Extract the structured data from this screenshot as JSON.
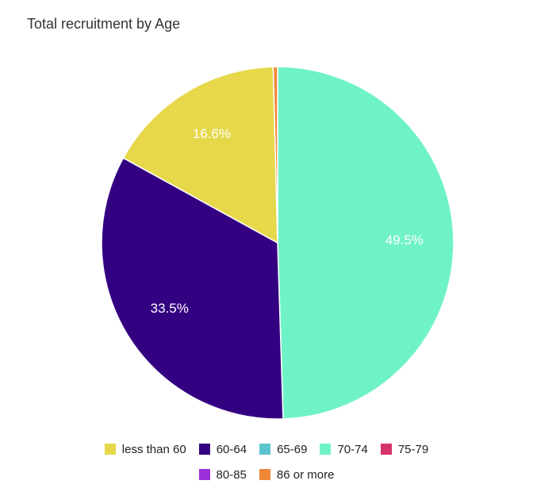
{
  "chart_data": {
    "type": "pie",
    "title": "Total recruitment by Age",
    "slices": [
      {
        "name": "less than 60",
        "value": 16.6,
        "label": "16.6%",
        "color": "#e6d84a"
      },
      {
        "name": "60-64",
        "value": 33.5,
        "label": "33.5%",
        "color": "#340082"
      },
      {
        "name": "65-69",
        "value": 0,
        "label": "",
        "color": "#5bc4cf"
      },
      {
        "name": "70-74",
        "value": 49.5,
        "label": "49.5%",
        "color": "#70f2c8"
      },
      {
        "name": "75-79",
        "value": 0,
        "label": "",
        "color": "#d6336c"
      },
      {
        "name": "80-85",
        "value": 0,
        "label": "",
        "color": "#9b30d9"
      },
      {
        "name": "86 or more",
        "value": 0.4,
        "label": "",
        "color": "#f0883a"
      }
    ],
    "legend": {
      "position": "bottom",
      "rows": [
        [
          "less than 60",
          "60-64",
          "65-69",
          "70-74",
          "75-79"
        ],
        [
          "80-85",
          "86 or more"
        ]
      ]
    }
  }
}
